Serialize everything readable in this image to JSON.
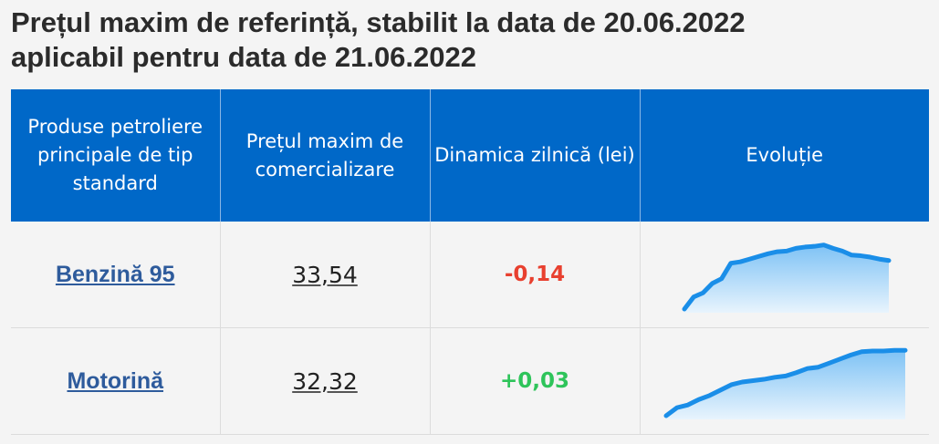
{
  "title": {
    "line1": "Prețul maxim de referință, stabilit la data de 20.06.2022",
    "line2": "aplicabil pentru data de 21.06.2022"
  },
  "table": {
    "headers": [
      "Produse petroliere principale de tip standard",
      "Prețul maxim de comercializare",
      "Dinamica zilnică (lei)",
      "Evoluție"
    ],
    "rows": [
      {
        "product": "Benzină 95",
        "price": "33,54",
        "change": "-0,14",
        "change_color": "#e8402f",
        "trend": [
          0.0,
          0.18,
          0.24,
          0.38,
          0.45,
          0.68,
          0.7,
          0.74,
          0.78,
          0.82,
          0.85,
          0.86,
          0.9,
          0.92,
          0.93,
          0.95,
          0.9,
          0.86,
          0.8,
          0.79,
          0.77,
          0.74,
          0.72
        ]
      },
      {
        "product": "Motorină",
        "price": "32,32",
        "change": "+0,03",
        "change_color": "#2ec45a",
        "trend": [
          0.0,
          0.12,
          0.16,
          0.24,
          0.3,
          0.38,
          0.46,
          0.5,
          0.52,
          0.54,
          0.57,
          0.59,
          0.64,
          0.7,
          0.72,
          0.78,
          0.84,
          0.9,
          0.95,
          0.96,
          0.96,
          0.97,
          0.97
        ]
      }
    ]
  },
  "colors": {
    "header_bg": "#0068c8",
    "spark_line": "#1a8ee8",
    "spark_fill_top": "#7ec2f5",
    "spark_fill_bottom": "#e8f4fd"
  }
}
